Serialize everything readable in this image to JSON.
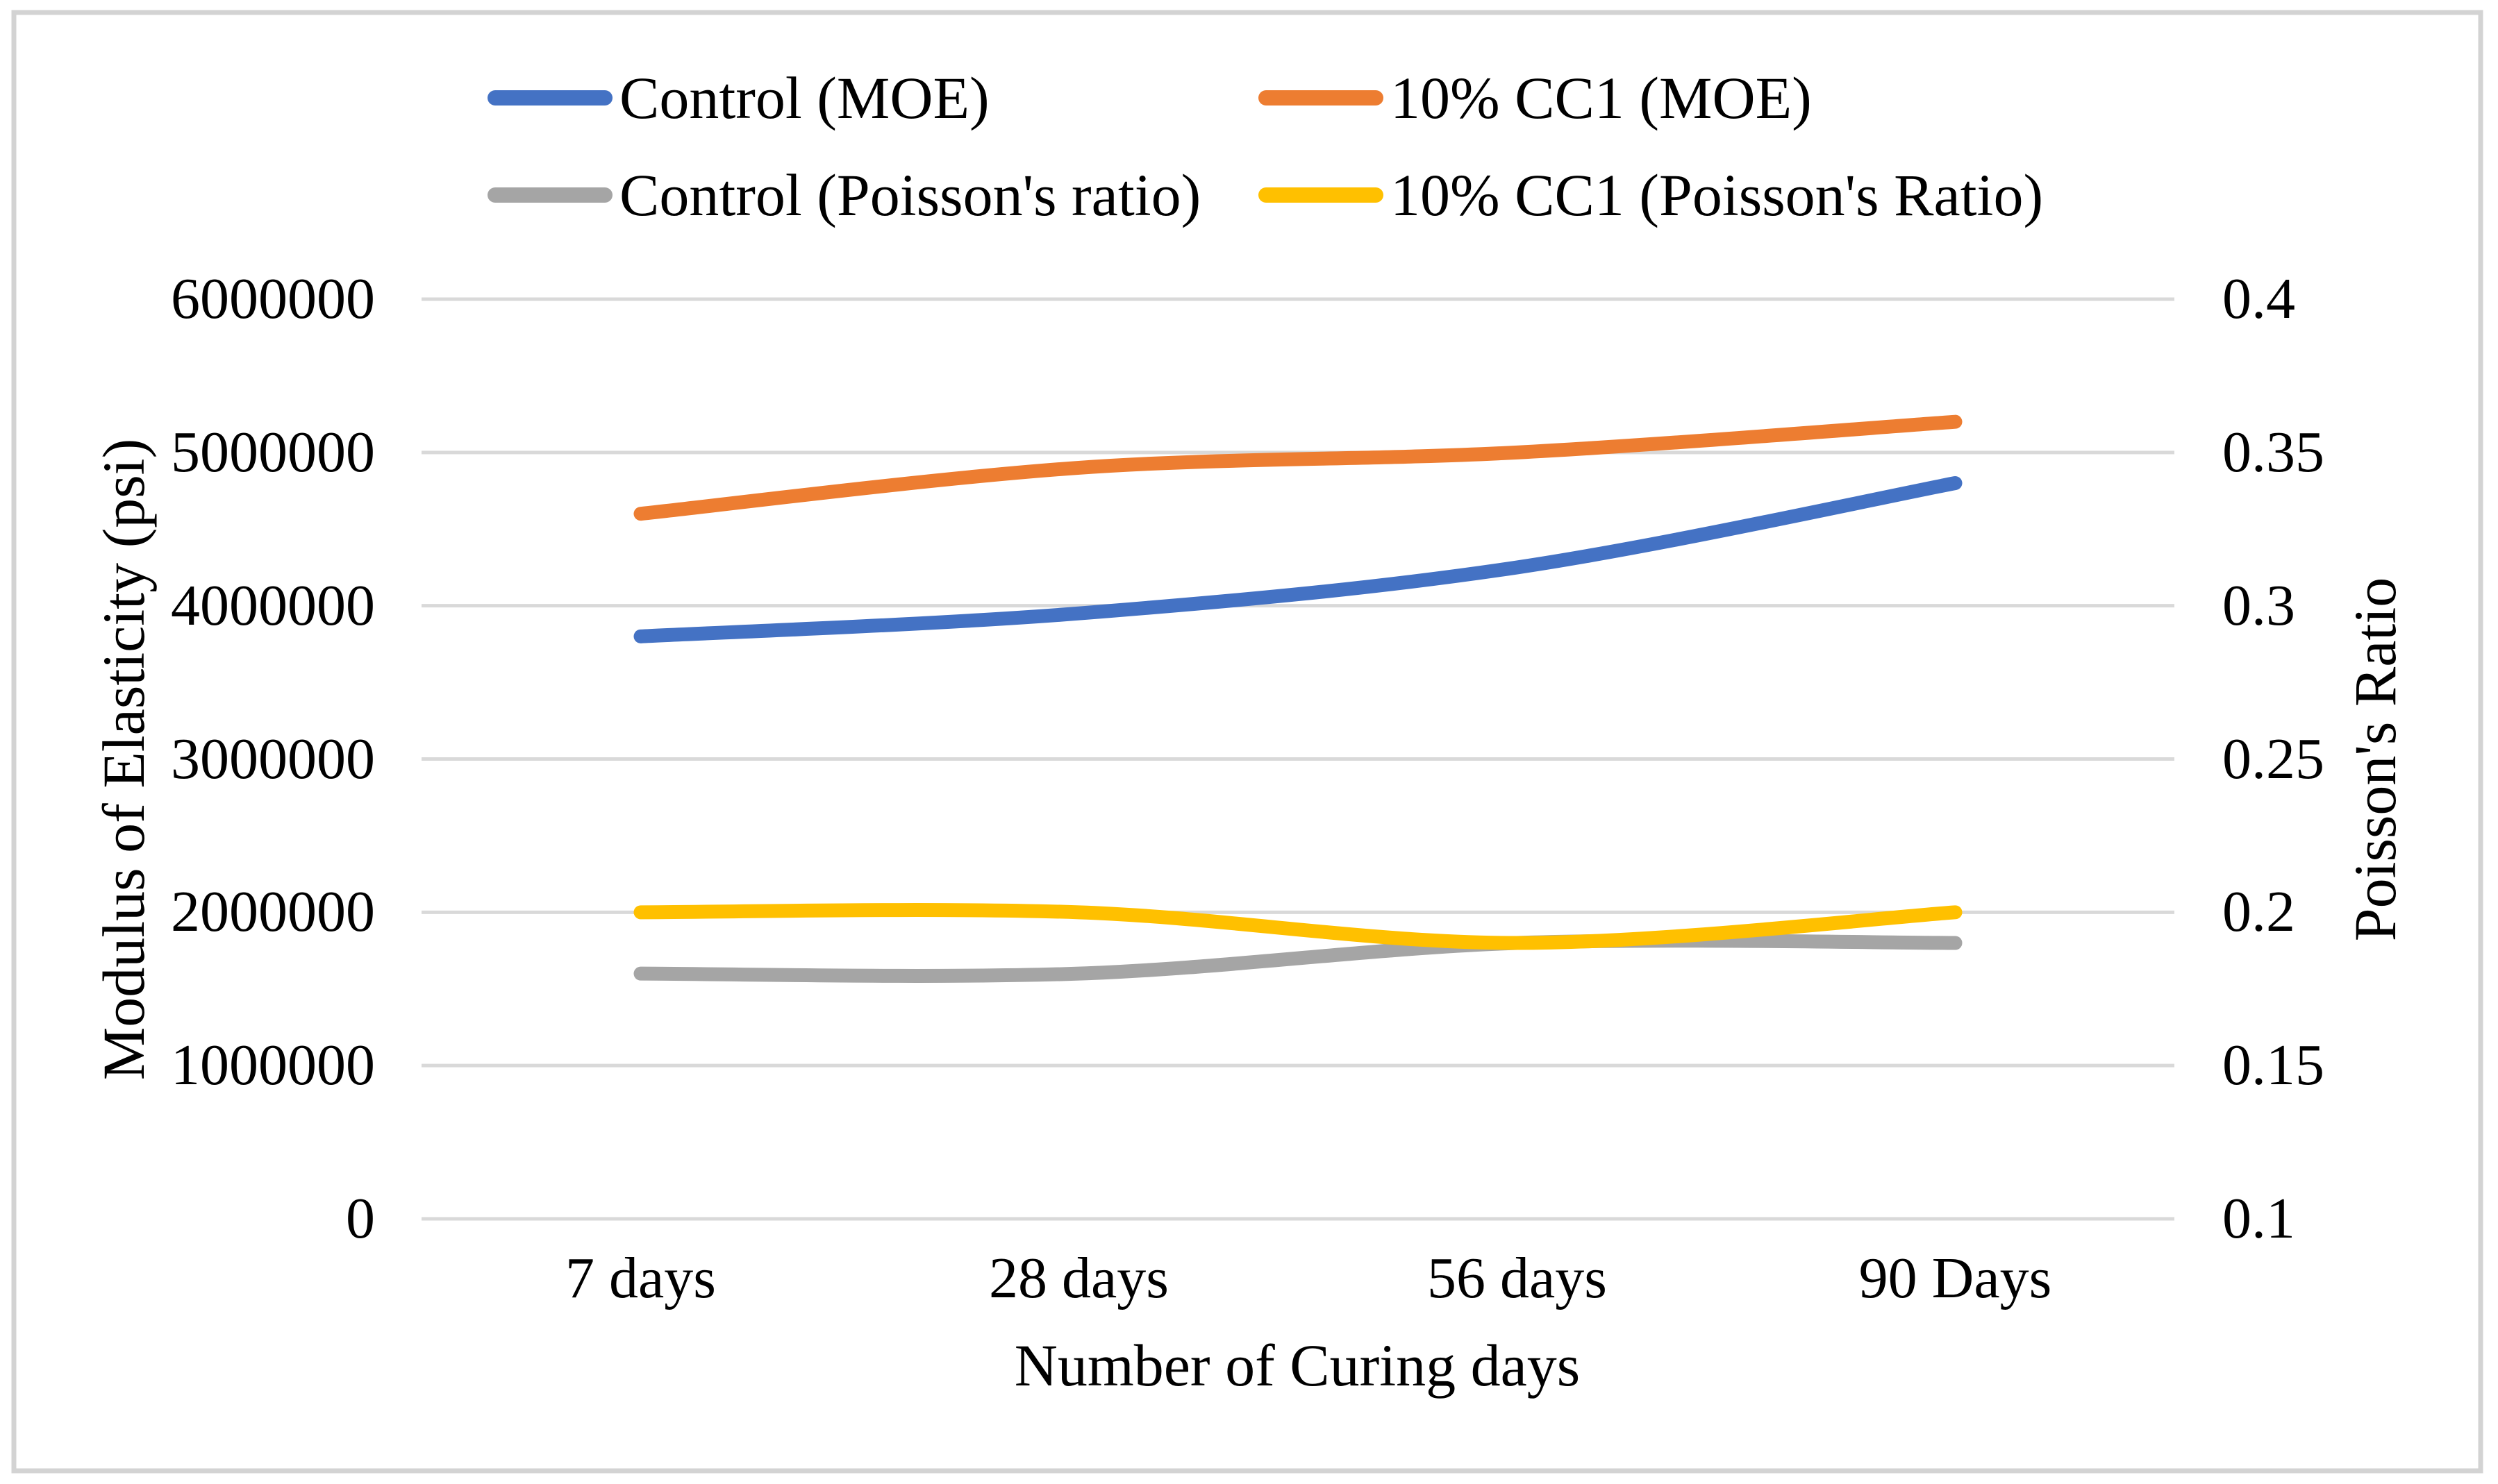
{
  "figure": {
    "background": "#FFFFFF",
    "border_color": "#D3D3D3"
  },
  "chart_data": {
    "type": "line",
    "line_style": "smooth",
    "grid": true,
    "gridline_color": "#D9D9D9",
    "legend_position": "top",
    "categories": [
      "7 days",
      "28 days",
      "56 days",
      "90 Days"
    ],
    "x_axis_title": "Number of Curing days",
    "left_axis": {
      "title": "Modulus of  Elasticity (psi)",
      "min": 0,
      "max": 6000000,
      "tick_step": 1000000,
      "tick_labels": [
        "0",
        "1000000",
        "2000000",
        "3000000",
        "4000000",
        "5000000",
        "6000000"
      ]
    },
    "right_axis": {
      "title": "Poisson's Ratio",
      "min": 0.1,
      "max": 0.4,
      "tick_step": 0.05,
      "tick_labels": [
        "0.1",
        "0.15",
        "0.2",
        "0.25",
        "0.3",
        "0.35",
        "0.4"
      ]
    },
    "series": [
      {
        "name": "Control (MOE)",
        "slug": "control-moe",
        "axis": "left",
        "color": "#4472C4",
        "values": [
          3800000,
          3950000,
          4250000,
          4800000
        ]
      },
      {
        "name": "10% CC1 (MOE)",
        "slug": "10-cc1-moe",
        "axis": "left",
        "color": "#ED7D31",
        "values": [
          4600000,
          4900000,
          5000000,
          5200000
        ]
      },
      {
        "name": "Control (Poisson's ratio)",
        "slug": "control-poisson",
        "axis": "right",
        "color": "#A5A5A5",
        "values": [
          0.18,
          0.18,
          0.19,
          0.19
        ]
      },
      {
        "name": "10% CC1 (Poisson's Ratio)",
        "slug": "10-cc1-poisson",
        "axis": "right",
        "color": "#FFC000",
        "values": [
          0.2,
          0.2,
          0.19,
          0.2
        ]
      }
    ]
  }
}
